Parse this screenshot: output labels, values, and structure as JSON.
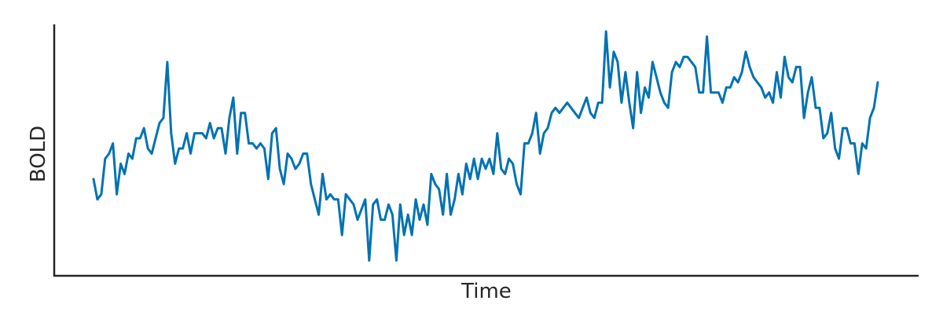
{
  "chart_data": {
    "type": "line",
    "title": "",
    "xlabel": "Time",
    "ylabel": "BOLD",
    "xlim": [
      0,
      200
    ],
    "ylim": [
      -2.2,
      2.4
    ],
    "grid": false,
    "legend": "none",
    "color": "#0072b2",
    "series": [
      {
        "values": [
          -0.5,
          -0.9,
          -0.8,
          -0.1,
          0.0,
          0.2,
          -0.8,
          -0.2,
          -0.4,
          0.0,
          -0.1,
          0.3,
          0.3,
          0.5,
          0.1,
          0.0,
          0.3,
          0.6,
          0.7,
          1.8,
          0.4,
          -0.2,
          0.1,
          0.1,
          0.4,
          0.0,
          0.4,
          0.4,
          0.4,
          0.3,
          0.6,
          0.3,
          0.5,
          0.5,
          0.0,
          0.7,
          1.1,
          0.0,
          0.8,
          0.8,
          0.2,
          0.2,
          0.1,
          0.2,
          0.1,
          -0.5,
          0.4,
          0.5,
          -0.3,
          -0.6,
          0.0,
          -0.1,
          -0.3,
          -0.2,
          0.0,
          0.0,
          -0.6,
          -0.9,
          -1.2,
          -0.4,
          -0.9,
          -0.8,
          -0.9,
          -0.9,
          -1.6,
          -0.8,
          -0.9,
          -1.0,
          -1.3,
          -1.1,
          -0.9,
          -2.1,
          -1.0,
          -0.9,
          -1.3,
          -1.3,
          -1.0,
          -1.2,
          -2.1,
          -1.0,
          -1.6,
          -1.2,
          -1.6,
          -0.9,
          -1.3,
          -1.0,
          -1.4,
          -0.4,
          -0.6,
          -0.7,
          -1.2,
          -0.4,
          -1.2,
          -0.9,
          -0.4,
          -0.8,
          -0.2,
          -0.5,
          -0.1,
          -0.5,
          -0.1,
          -0.3,
          -0.1,
          -0.4,
          0.4,
          -0.3,
          -0.4,
          -0.1,
          -0.2,
          -0.6,
          -0.8,
          0.2,
          0.2,
          0.4,
          0.8,
          0.0,
          0.4,
          0.5,
          0.8,
          0.9,
          0.8,
          0.9,
          1.0,
          0.9,
          0.8,
          0.7,
          0.9,
          1.1,
          0.8,
          0.7,
          1.0,
          1.0,
          2.4,
          1.3,
          2.0,
          1.8,
          1.0,
          1.6,
          1.0,
          0.5,
          1.6,
          0.8,
          1.3,
          1.1,
          1.8,
          1.5,
          1.2,
          1.0,
          0.9,
          1.6,
          1.8,
          1.7,
          1.9,
          1.9,
          1.8,
          1.7,
          1.2,
          1.2,
          2.3,
          1.2,
          1.2,
          1.2,
          1.0,
          1.3,
          1.3,
          1.5,
          1.4,
          1.6,
          2.0,
          1.7,
          1.5,
          1.4,
          1.3,
          1.1,
          1.2,
          1.0,
          1.6,
          1.1,
          1.9,
          1.5,
          1.4,
          1.7,
          1.7,
          0.7,
          1.2,
          1.5,
          0.9,
          0.9,
          0.3,
          0.4,
          0.8,
          0.1,
          -0.1,
          0.5,
          0.5,
          0.2,
          0.2,
          -0.4,
          0.2,
          0.1,
          0.7,
          0.9,
          1.4
        ]
      }
    ]
  }
}
